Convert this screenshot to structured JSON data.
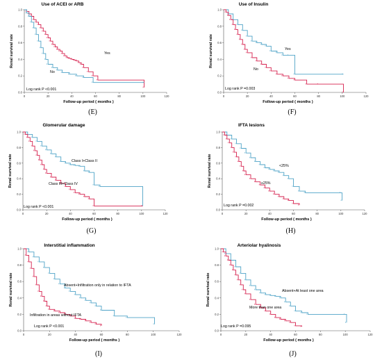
{
  "colors": {
    "series_a": "#d6204e",
    "series_b": "#4fa3c7",
    "axis": "#555555"
  },
  "axis_labels": {
    "ylabel": "Renal survival rate",
    "xlabel": "Follow-up period ( months )"
  },
  "chart_data": [
    {
      "type": "line",
      "letter": "(E)",
      "title": "Use of ACEI or ARB",
      "logrank": "Log rank P <0.001",
      "xlim": [
        0,
        120
      ],
      "ylim": [
        0,
        1.0
      ],
      "xticks": [
        "0",
        "20",
        "40",
        "60",
        "80",
        "100",
        "120"
      ],
      "yticks": [
        "0.0",
        "0.2",
        "0.4",
        "0.6",
        "0.8",
        "1.0"
      ],
      "series": [
        {
          "name": "Yes",
          "color": "#d6204e",
          "x": [
            0,
            2,
            4,
            6,
            8,
            10,
            12,
            14,
            16,
            18,
            20,
            22,
            24,
            26,
            28,
            30,
            32,
            34,
            36,
            38,
            40,
            42,
            44,
            46,
            48,
            50,
            54,
            58,
            62,
            101
          ],
          "y": [
            1.0,
            0.98,
            0.95,
            0.92,
            0.88,
            0.85,
            0.82,
            0.78,
            0.74,
            0.7,
            0.66,
            0.62,
            0.58,
            0.55,
            0.52,
            0.5,
            0.47,
            0.44,
            0.42,
            0.41,
            0.4,
            0.39,
            0.38,
            0.36,
            0.34,
            0.3,
            0.25,
            0.2,
            0.15,
            0.06
          ]
        },
        {
          "name": "No",
          "color": "#4fa3c7",
          "x": [
            0,
            2,
            4,
            6,
            8,
            10,
            12,
            14,
            16,
            18,
            20,
            24,
            28,
            32,
            38,
            44,
            50,
            58,
            101
          ],
          "y": [
            1.0,
            0.96,
            0.92,
            0.85,
            0.78,
            0.7,
            0.62,
            0.54,
            0.47,
            0.4,
            0.34,
            0.3,
            0.27,
            0.24,
            0.22,
            0.2,
            0.18,
            0.12,
            0.12
          ]
        }
      ]
    },
    {
      "type": "line",
      "letter": "(F)",
      "title": "Use of Insulin",
      "logrank": "Log rank P =0.003",
      "xlim": [
        0,
        120
      ],
      "ylim": [
        0,
        1.0
      ],
      "xticks": [
        "0",
        "20",
        "40",
        "60",
        "80",
        "100",
        "120"
      ],
      "yticks": [
        "0.0",
        "0.2",
        "0.4",
        "0.6",
        "0.8",
        "1.0"
      ],
      "series": [
        {
          "name": "Yes",
          "color": "#4fa3c7",
          "x": [
            0,
            4,
            8,
            12,
            16,
            20,
            24,
            28,
            32,
            36,
            40,
            45,
            50,
            55,
            60,
            101
          ],
          "y": [
            1.0,
            0.95,
            0.88,
            0.82,
            0.75,
            0.68,
            0.62,
            0.6,
            0.58,
            0.56,
            0.5,
            0.48,
            0.45,
            0.45,
            0.22,
            0.22
          ]
        },
        {
          "name": "No",
          "color": "#d6204e",
          "x": [
            0,
            2,
            4,
            6,
            8,
            10,
            12,
            14,
            16,
            18,
            20,
            24,
            28,
            32,
            36,
            40,
            45,
            50,
            55,
            60,
            70,
            80,
            101
          ],
          "y": [
            1.0,
            0.97,
            0.93,
            0.88,
            0.82,
            0.76,
            0.7,
            0.64,
            0.58,
            0.52,
            0.48,
            0.42,
            0.38,
            0.34,
            0.3,
            0.26,
            0.22,
            0.2,
            0.17,
            0.15,
            0.1,
            0.1,
            0.0
          ]
        }
      ]
    },
    {
      "type": "line",
      "letter": "(G)",
      "title": "Glomerular damage",
      "logrank": "Log rank P <0.001",
      "xlim": [
        0,
        120
      ],
      "ylim": [
        0,
        1.0
      ],
      "xticks": [
        "0",
        "20",
        "40",
        "60",
        "80",
        "100",
        "120"
      ],
      "yticks": [
        "0.0",
        "0.2",
        "0.4",
        "0.6",
        "0.8",
        "1.0"
      ],
      "series": [
        {
          "name": "Class I+Class II",
          "color": "#4fa3c7",
          "x": [
            0,
            4,
            8,
            12,
            16,
            20,
            24,
            28,
            32,
            36,
            40,
            44,
            48,
            52,
            56,
            60,
            65,
            101
          ],
          "y": [
            1.0,
            0.97,
            0.93,
            0.88,
            0.82,
            0.77,
            0.72,
            0.68,
            0.62,
            0.6,
            0.58,
            0.57,
            0.56,
            0.5,
            0.48,
            0.32,
            0.3,
            0.05
          ]
        },
        {
          "name": "Class III+Class IV",
          "color": "#d6204e",
          "x": [
            0,
            2,
            4,
            6,
            8,
            10,
            12,
            14,
            16,
            18,
            20,
            24,
            28,
            32,
            36,
            40,
            44,
            48,
            52,
            56,
            60,
            101
          ],
          "y": [
            1.0,
            0.97,
            0.93,
            0.88,
            0.82,
            0.76,
            0.7,
            0.64,
            0.58,
            0.52,
            0.47,
            0.42,
            0.38,
            0.34,
            0.3,
            0.26,
            0.22,
            0.2,
            0.17,
            0.14,
            0.05,
            0.05
          ]
        }
      ]
    },
    {
      "type": "line",
      "letter": "(H)",
      "title": "IFTA lesions",
      "logrank": "Log rank P =0.002",
      "xlim": [
        0,
        120
      ],
      "ylim": [
        0,
        1.0
      ],
      "xticks": [
        "0",
        "20",
        "40",
        "60",
        "80",
        "100",
        "120"
      ],
      "yticks": [
        "0.0",
        "0.2",
        "0.4",
        "0.6",
        "0.8",
        "1.0"
      ],
      "series": [
        {
          "name": "<25%",
          "color": "#4fa3c7",
          "x": [
            0,
            4,
            8,
            12,
            16,
            20,
            24,
            28,
            32,
            36,
            40,
            44,
            48,
            52,
            56,
            60,
            65,
            70,
            100,
            101
          ],
          "y": [
            1.0,
            0.96,
            0.91,
            0.85,
            0.79,
            0.73,
            0.67,
            0.62,
            0.58,
            0.54,
            0.52,
            0.5,
            0.48,
            0.44,
            0.4,
            0.3,
            0.24,
            0.22,
            0.22,
            0.12
          ]
        },
        {
          "name": "≥25%",
          "color": "#d6204e",
          "x": [
            0,
            2,
            4,
            6,
            8,
            10,
            12,
            14,
            16,
            18,
            20,
            24,
            28,
            32,
            36,
            40,
            44,
            48,
            52,
            56,
            60,
            65
          ],
          "y": [
            1.0,
            0.96,
            0.91,
            0.86,
            0.8,
            0.74,
            0.68,
            0.62,
            0.56,
            0.5,
            0.45,
            0.4,
            0.36,
            0.32,
            0.28,
            0.24,
            0.2,
            0.17,
            0.14,
            0.12,
            0.08,
            0.06
          ]
        }
      ]
    },
    {
      "type": "line",
      "letter": "(I)",
      "title": "Interstitial inflammation",
      "logrank": "Log rank P <0.001",
      "xlim": [
        0,
        120
      ],
      "ylim": [
        0,
        1.0
      ],
      "xticks": [
        "0",
        "20",
        "40",
        "60",
        "80",
        "100",
        "120"
      ],
      "yticks": [
        "0.0",
        "0.2",
        "0.4",
        "0.6",
        "0.8",
        "1.0"
      ],
      "series": [
        {
          "name": "Absent+Infiltration only in relation to IFTA",
          "color": "#4fa3c7",
          "x": [
            0,
            4,
            8,
            12,
            16,
            20,
            24,
            28,
            32,
            36,
            40,
            44,
            48,
            52,
            56,
            60,
            70,
            80,
            101
          ],
          "y": [
            1.0,
            0.96,
            0.9,
            0.84,
            0.77,
            0.7,
            0.63,
            0.57,
            0.52,
            0.48,
            0.44,
            0.4,
            0.37,
            0.34,
            0.3,
            0.25,
            0.18,
            0.16,
            0.08
          ]
        },
        {
          "name": "Infiltration in areas without IFTA",
          "color": "#d6204e",
          "x": [
            0,
            2,
            4,
            6,
            8,
            10,
            12,
            14,
            16,
            18,
            20,
            24,
            28,
            32,
            36,
            40,
            44,
            48,
            52,
            56,
            60
          ],
          "y": [
            1.0,
            0.92,
            0.84,
            0.76,
            0.66,
            0.56,
            0.48,
            0.42,
            0.36,
            0.3,
            0.26,
            0.24,
            0.22,
            0.2,
            0.18,
            0.15,
            0.14,
            0.12,
            0.1,
            0.08,
            0.06
          ]
        }
      ]
    },
    {
      "type": "line",
      "letter": "(J)",
      "title": "Arteriolar hyalinosis",
      "logrank": "Log rank P =0.095",
      "xlim": [
        0,
        120
      ],
      "ylim": [
        0,
        1.0
      ],
      "xticks": [
        "0",
        "20",
        "40",
        "60",
        "80",
        "100",
        "120"
      ],
      "yticks": [
        "0.0",
        "0.2",
        "0.4",
        "0.6",
        "0.8",
        "1.0"
      ],
      "series": [
        {
          "name": "Absent+At least one area",
          "color": "#4fa3c7",
          "x": [
            0,
            4,
            8,
            12,
            16,
            20,
            24,
            28,
            32,
            36,
            40,
            44,
            48,
            52,
            56,
            60,
            65,
            70,
            100,
            101
          ],
          "y": [
            1.0,
            0.94,
            0.86,
            0.78,
            0.7,
            0.62,
            0.55,
            0.5,
            0.46,
            0.44,
            0.43,
            0.42,
            0.4,
            0.35,
            0.3,
            0.24,
            0.22,
            0.2,
            0.2,
            0.1
          ]
        },
        {
          "name": "More than one area",
          "color": "#d6204e",
          "x": [
            0,
            2,
            4,
            6,
            8,
            10,
            12,
            14,
            16,
            18,
            20,
            24,
            28,
            32,
            36,
            40,
            44,
            48,
            52,
            56,
            60,
            65
          ],
          "y": [
            1.0,
            0.96,
            0.91,
            0.86,
            0.8,
            0.74,
            0.68,
            0.62,
            0.56,
            0.5,
            0.45,
            0.38,
            0.32,
            0.28,
            0.24,
            0.2,
            0.16,
            0.14,
            0.12,
            0.1,
            0.06,
            0.05
          ]
        }
      ]
    }
  ]
}
